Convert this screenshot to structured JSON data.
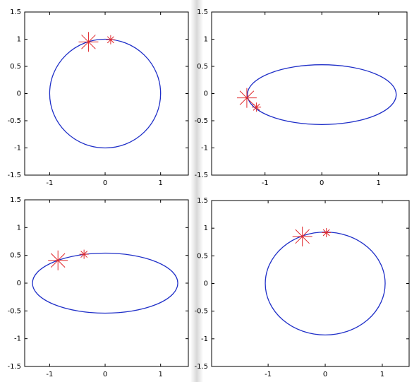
{
  "chart_data": [
    {
      "type": "ellipse",
      "xlim": [
        -1.45,
        1.5
      ],
      "ylim": [
        -1.5,
        1.5
      ],
      "xticks": [
        -1,
        0,
        1
      ],
      "yticks": [
        -1.5,
        -1,
        -0.5,
        0,
        0.5,
        1,
        1.5
      ],
      "ellipse": {
        "cx": 0,
        "cy": 0,
        "rx": 1,
        "ry": 1,
        "color": "#1f2fc8"
      },
      "markers": {
        "x": [
          -0.3,
          0.1
        ],
        "y": [
          0.95,
          0.99
        ],
        "color": "#e0282c"
      }
    },
    {
      "type": "ellipse",
      "xlim": [
        -1.94,
        1.5
      ],
      "ylim": [
        -1.5,
        1.5
      ],
      "xticks": [
        -1,
        0,
        1
      ],
      "yticks": [
        -1.5,
        -1,
        -0.5,
        0,
        0.5,
        1,
        1.5
      ],
      "ellipse": {
        "cx": 0,
        "cy": -0.02,
        "rx": 1.31,
        "ry": 0.55,
        "color": "#1f2fc8"
      },
      "markers": {
        "x": [
          -1.32,
          -1.15
        ],
        "y": [
          -0.08,
          -0.25
        ],
        "color": "#e0282c"
      }
    },
    {
      "type": "ellipse",
      "xlim": [
        -1.45,
        1.5
      ],
      "ylim": [
        -1.5,
        1.5
      ],
      "xticks": [
        -1,
        0,
        1
      ],
      "yticks": [
        -1.5,
        -1,
        -0.5,
        0,
        0.5,
        1,
        1.5
      ],
      "ellipse": {
        "cx": 0,
        "cy": 0,
        "rx": 1.31,
        "ry": 0.54,
        "color": "#1f2fc8"
      },
      "markers": {
        "x": [
          -0.85,
          -0.38
        ],
        "y": [
          0.41,
          0.52
        ],
        "color": "#e0282c"
      }
    },
    {
      "type": "ellipse",
      "xlim": [
        -1.99,
        1.47
      ],
      "ylim": [
        -1.5,
        1.5
      ],
      "xticks": [
        -1,
        0,
        1
      ],
      "yticks": [
        -1.5,
        -1,
        -0.5,
        0,
        0.5,
        1,
        1.5
      ],
      "ellipse": {
        "cx": 0,
        "cy": 0,
        "rx": 1.05,
        "ry": 0.93,
        "color": "#1f2fc8"
      },
      "markers": {
        "x": [
          -0.4,
          0.02
        ],
        "y": [
          0.85,
          0.92
        ],
        "color": "#e0282c"
      }
    }
  ]
}
